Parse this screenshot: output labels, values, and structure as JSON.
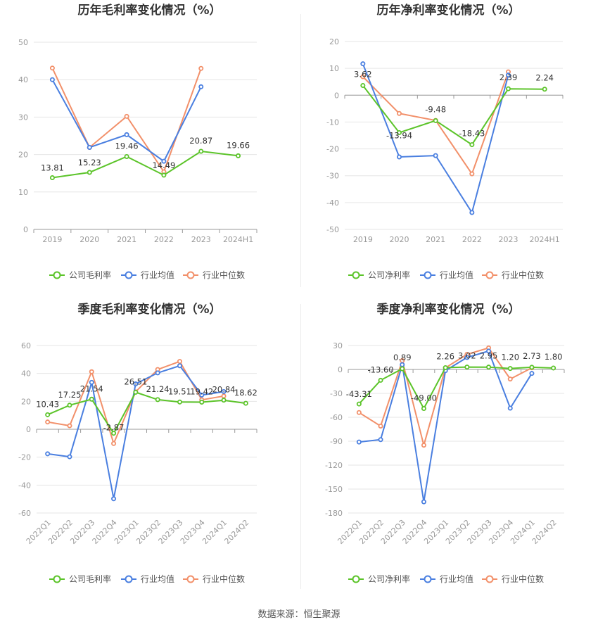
{
  "footer": "数据来源：恒生聚源",
  "colors": {
    "company": "#5cc42a",
    "avg": "#4a7fe0",
    "median": "#f2906a"
  },
  "chart_data": [
    {
      "type": "line",
      "title": "历年毛利率变化情况（%）",
      "categories": [
        "2019",
        "2020",
        "2021",
        "2022",
        "2023",
        "2024H1"
      ],
      "ylim": [
        0,
        50
      ],
      "yticks": [
        0,
        10,
        20,
        30,
        40,
        50
      ],
      "rotate_labels": false,
      "series": [
        {
          "name": "公司毛利率",
          "key": "company",
          "values": [
            13.81,
            15.23,
            19.46,
            14.49,
            20.87,
            19.66
          ],
          "labels": [
            "13.81",
            "15.23",
            "19.46",
            "14.49",
            "20.87",
            "19.66"
          ]
        },
        {
          "name": "行业均值",
          "key": "avg",
          "values": [
            40.0,
            21.9,
            25.3,
            18.2,
            38.1,
            null
          ]
        },
        {
          "name": "行业中位数",
          "key": "median",
          "values": [
            43.1,
            21.9,
            30.2,
            15.4,
            43.0,
            null
          ]
        }
      ]
    },
    {
      "type": "line",
      "title": "历年净利率变化情况（%）",
      "categories": [
        "2019",
        "2020",
        "2021",
        "2022",
        "2023",
        "2024H1"
      ],
      "ylim": [
        -50,
        20
      ],
      "yticks": [
        -50,
        -40,
        -30,
        -20,
        -10,
        0,
        10,
        20
      ],
      "rotate_labels": false,
      "series": [
        {
          "name": "公司净利率",
          "key": "company",
          "values": [
            3.62,
            -13.94,
            -9.48,
            -18.43,
            2.39,
            2.24
          ],
          "labels": [
            "3.62",
            "-13.94",
            "-9.48",
            "-18.43",
            "2.39",
            "2.24"
          ]
        },
        {
          "name": "行业均值",
          "key": "avg",
          "values": [
            11.7,
            -23.0,
            -22.5,
            -43.7,
            7.5,
            null
          ]
        },
        {
          "name": "行业中位数",
          "key": "median",
          "values": [
            6.9,
            -6.8,
            -9.4,
            -29.3,
            8.7,
            null
          ]
        }
      ]
    },
    {
      "type": "line",
      "title": "季度毛利率变化情况（%）",
      "categories": [
        "2022Q1",
        "2022Q2",
        "2022Q3",
        "2022Q4",
        "2023Q1",
        "2023Q2",
        "2023Q3",
        "2023Q4",
        "2024Q1",
        "2024Q2"
      ],
      "ylim": [
        -60,
        60
      ],
      "yticks": [
        -60,
        -40,
        -20,
        0,
        20,
        40,
        60
      ],
      "rotate_labels": true,
      "series": [
        {
          "name": "公司毛利率",
          "key": "company",
          "values": [
            10.43,
            17.25,
            21.54,
            -2.87,
            26.51,
            21.24,
            19.51,
            19.42,
            20.84,
            18.62
          ],
          "labels": [
            "10.43",
            "17.25",
            "21.54",
            "-2.87",
            "26.51",
            "21.24",
            "19.51",
            "19.42",
            "20.84",
            "18.62"
          ]
        },
        {
          "name": "行业均值",
          "key": "avg",
          "values": [
            -17.6,
            -19.7,
            33.6,
            -49.8,
            32.5,
            40.4,
            45.5,
            24.5,
            27.0,
            null
          ]
        },
        {
          "name": "行业中位数",
          "key": "median",
          "values": [
            5.2,
            2.5,
            41.2,
            -10.2,
            26.8,
            42.8,
            48.6,
            21.1,
            23.8,
            null
          ]
        }
      ]
    },
    {
      "type": "line",
      "title": "季度净利率变化情况（%）",
      "categories": [
        "2022Q1",
        "2022Q2",
        "2022Q3",
        "2022Q4",
        "2023Q1",
        "2023Q2",
        "2023Q3",
        "2023Q4",
        "2024Q1",
        "2024Q2"
      ],
      "ylim": [
        -180,
        30
      ],
      "yticks": [
        -180,
        -150,
        -120,
        -90,
        -60,
        -30,
        0,
        30
      ],
      "rotate_labels": true,
      "series": [
        {
          "name": "公司净利率",
          "key": "company",
          "values": [
            -43.31,
            -13.6,
            0.89,
            -49.0,
            2.26,
            3.02,
            2.95,
            1.2,
            2.73,
            1.8
          ],
          "labels": [
            "-43.31",
            "-13.60",
            "0.89",
            "-49.00",
            "2.26",
            "3.02",
            "2.95",
            "1.20",
            "2.73",
            "1.80"
          ]
        },
        {
          "name": "行业均值",
          "key": "avg",
          "values": [
            -91.0,
            -88.0,
            6.0,
            -166.0,
            -1.5,
            15.0,
            23.0,
            -48.5,
            -5.0,
            null
          ]
        },
        {
          "name": "行业中位数",
          "key": "median",
          "values": [
            -54.0,
            -71.0,
            11.0,
            -95.0,
            2.0,
            19.0,
            27.0,
            -12.0,
            2.0,
            null
          ]
        }
      ]
    }
  ]
}
